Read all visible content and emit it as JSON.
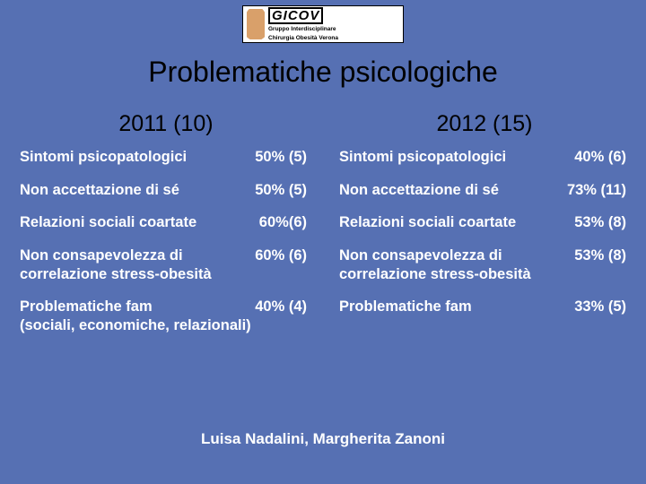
{
  "logo": {
    "name": "GICOV",
    "sub1": "Gruppo Interdisciplinare",
    "sub2": "Chirurgia Obesità Verona"
  },
  "title": "Problematiche psicologiche",
  "years": {
    "left": "2011  (10)",
    "right": "2012 (15)"
  },
  "left": {
    "r1_label": "Sintomi psicopatologici",
    "r1_val": "50% (5)",
    "r2_label": "Non accettazione di sé",
    "r2_val": "50% (5)",
    "r3_label": "Relazioni sociali coartate",
    "r3_val": "60%(6)",
    "r4_label": "Non consapevolezza di",
    "r4_val": "60% (6)",
    "r4_sub": "correlazione stress-obesità",
    "r5_label": "Problematiche fam",
    "r5_val": "40% (4)",
    "r5_sub": "(sociali, economiche, relazionali)"
  },
  "right": {
    "r1_label": "Sintomi psicopatologici",
    "r1_val": "40% (6)",
    "r2_label": "Non accettazione di sé",
    "r2_val": "73% (11)",
    "r3_label": "Relazioni sociali coartate",
    "r3_val": "53% (8)",
    "r4_label": "Non consapevolezza di",
    "r4_val": "53% (8)",
    "r4_sub": "correlazione stress-obesità",
    "r5_label": "Problematiche fam",
    "r5_val": "33% (5)"
  },
  "footer": "Luisa Nadalini, Margherita Zanoni",
  "colors": {
    "background": "#5670b3",
    "title": "#000000",
    "body_text": "#ffffff"
  },
  "typography": {
    "title_fontsize": 32,
    "year_fontsize": 25,
    "body_fontsize": 16.5,
    "footer_fontsize": 17
  }
}
